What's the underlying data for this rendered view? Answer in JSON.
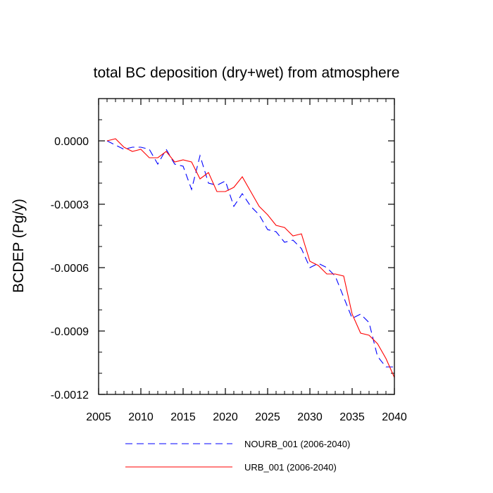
{
  "chart_data": {
    "type": "line",
    "title": "total BC deposition (dry+wet) from atmosphere",
    "xlabel": "",
    "ylabel": "BCDEP  (Pg/y)",
    "xlim": [
      2005,
      2040
    ],
    "ylim": [
      -0.0012,
      0.0002
    ],
    "xticks": [
      2005,
      2010,
      2015,
      2020,
      2025,
      2030,
      2035,
      2040
    ],
    "xtick_labels": [
      "2005",
      "2010",
      "2015",
      "2020",
      "2025",
      "2030",
      "2035",
      "2040"
    ],
    "yticks": [
      0.0,
      -0.0003,
      -0.0006,
      -0.0009,
      -0.0012
    ],
    "ytick_labels": [
      "0.0000",
      "-0.0003",
      "-0.0006",
      "-0.0009",
      "-0.0012"
    ],
    "x": [
      2006,
      2007,
      2008,
      2009,
      2010,
      2011,
      2012,
      2013,
      2014,
      2015,
      2016,
      2017,
      2018,
      2019,
      2020,
      2021,
      2022,
      2023,
      2024,
      2025,
      2026,
      2027,
      2028,
      2029,
      2030,
      2031,
      2032,
      2033,
      2034,
      2035,
      2036,
      2037,
      2038,
      2039,
      2040
    ],
    "series": [
      {
        "name": "NOURB_001 (2006-2040)",
        "color": "#0000ff",
        "dash": "dashed",
        "values": [
          0.0,
          -2e-05,
          -4e-05,
          -3e-05,
          -3e-05,
          -4e-05,
          -0.00011,
          -4e-05,
          -0.00011,
          -0.00012,
          -0.00023,
          -7e-05,
          -0.0002,
          -0.00021,
          -0.00019,
          -0.00031,
          -0.00025,
          -0.00031,
          -0.00035,
          -0.00042,
          -0.00043,
          -0.00048,
          -0.00047,
          -0.00051,
          -0.0006,
          -0.00058,
          -0.0006,
          -0.00064,
          -0.00074,
          -0.00084,
          -0.00082,
          -0.00086,
          -0.00102,
          -0.00107,
          -0.00107
        ]
      },
      {
        "name": "URB_001 (2006-2040)",
        "color": "#ff0000",
        "dash": "solid",
        "values": [
          0.0,
          1e-05,
          -3e-05,
          -5e-05,
          -4e-05,
          -8e-05,
          -8e-05,
          -5e-05,
          -0.0001,
          -9e-05,
          -0.0001,
          -0.00018,
          -0.00015,
          -0.00024,
          -0.00024,
          -0.00022,
          -0.00017,
          -0.00024,
          -0.00031,
          -0.00035,
          -0.0004,
          -0.00041,
          -0.00045,
          -0.00044,
          -0.00057,
          -0.00059,
          -0.00063,
          -0.00063,
          -0.00064,
          -0.00082,
          -0.00091,
          -0.00092,
          -0.00096,
          -0.00103,
          -0.00112
        ]
      }
    ]
  }
}
